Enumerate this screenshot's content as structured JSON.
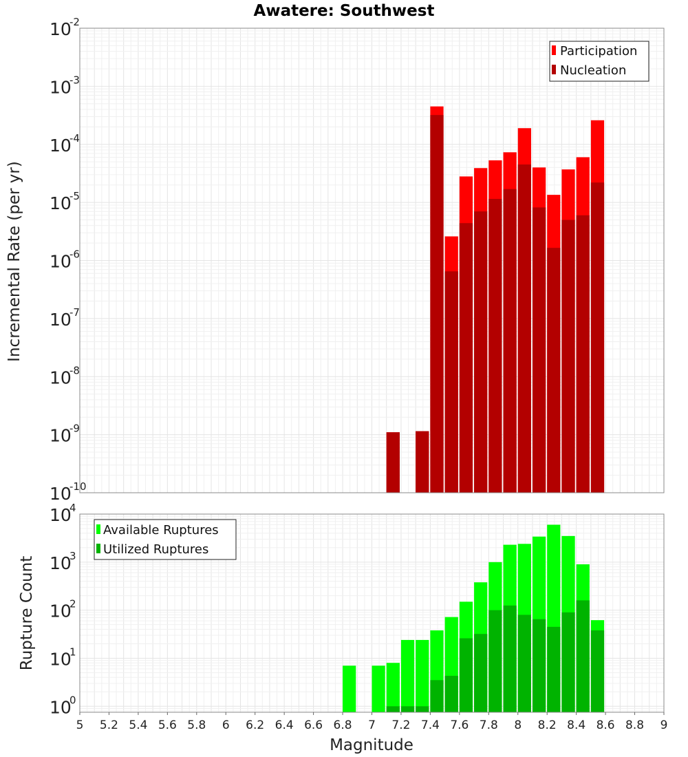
{
  "chart_data": [
    {
      "type": "bar",
      "title": "Awatere: Southwest",
      "ylabel": "Incremental Rate (per yr)",
      "xlabel": "",
      "yscale": "log",
      "ylim": [
        1e-10,
        0.01
      ],
      "xlim": [
        5,
        9
      ],
      "bin_width": 0.1,
      "grid": true,
      "legend_position": "top-right",
      "y_tick_exponents": [
        "-10",
        "-9",
        "-8",
        "-7",
        "-6",
        "-5",
        "-4",
        "-3",
        "-2"
      ],
      "series": [
        {
          "name": "Participation",
          "color": "#ff0000",
          "x": [
            7.1,
            7.3,
            7.4,
            7.5,
            7.6,
            7.7,
            7.8,
            7.9,
            8.0,
            8.1,
            8.2,
            8.3,
            8.4,
            8.5
          ],
          "values": [
            1.1e-09,
            1.15e-09,
            0.00045,
            2.6e-06,
            2.8e-05,
            3.9e-05,
            5.3e-05,
            7.3e-05,
            0.00019,
            4e-05,
            1.35e-05,
            3.7e-05,
            6e-05,
            0.00026
          ]
        },
        {
          "name": "Nucleation",
          "color": "#b30000",
          "x": [
            7.1,
            7.3,
            7.4,
            7.5,
            7.6,
            7.7,
            7.8,
            7.9,
            8.0,
            8.1,
            8.2,
            8.3,
            8.4,
            8.5
          ],
          "values": [
            1.1e-09,
            1.15e-09,
            0.00032,
            6.5e-07,
            4.4e-06,
            7e-06,
            1.15e-05,
            1.7e-05,
            4.5e-05,
            8.2e-06,
            1.65e-06,
            5e-06,
            6e-06,
            2.2e-05
          ]
        }
      ]
    },
    {
      "type": "bar",
      "title": "",
      "ylabel": "Rupture Count",
      "xlabel": "Magnitude",
      "yscale": "log",
      "ylim": [
        0.75,
        10000
      ],
      "xlim": [
        5,
        9
      ],
      "bin_width": 0.1,
      "grid": true,
      "legend_position": "top-left",
      "x_tick_labels": [
        "5",
        "5.2",
        "5.4",
        "5.6",
        "5.8",
        "6",
        "6.2",
        "6.4",
        "6.6",
        "6.8",
        "7",
        "7.2",
        "7.4",
        "7.6",
        "7.8",
        "8",
        "8.2",
        "8.4",
        "8.6",
        "8.8",
        "9"
      ],
      "y_tick_exponents": [
        "0",
        "1",
        "2",
        "3",
        "4"
      ],
      "series": [
        {
          "name": "Available Ruptures",
          "color": "#00ff00",
          "x": [
            6.8,
            7.0,
            7.1,
            7.2,
            7.3,
            7.4,
            7.5,
            7.6,
            7.7,
            7.8,
            7.9,
            8.0,
            8.1,
            8.2,
            8.3,
            8.4,
            8.5
          ],
          "values": [
            7,
            7,
            8,
            24,
            24,
            38,
            72,
            150,
            380,
            1000,
            2300,
            2400,
            3400,
            6000,
            3500,
            900,
            62
          ]
        },
        {
          "name": "Utilized Ruptures",
          "color": "#00b300",
          "x": [
            7.1,
            7.2,
            7.3,
            7.4,
            7.5,
            7.6,
            7.7,
            7.8,
            7.9,
            8.0,
            8.1,
            8.2,
            8.3,
            8.4,
            8.5
          ],
          "values": [
            1,
            1,
            1,
            3.5,
            4.3,
            26,
            32,
            100,
            125,
            80,
            65,
            45,
            90,
            160,
            38
          ]
        }
      ]
    }
  ]
}
